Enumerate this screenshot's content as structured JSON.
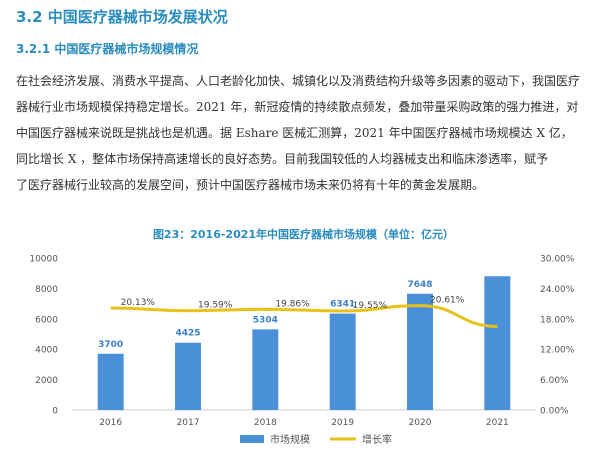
{
  "heading": "3.2 中国医疗器械市场发展状况",
  "subheading": "3.2.1 中国医疗器械市场规模情况",
  "paragraph_lines": [
    "在社会经济发展、消费水平提高、人口老龄化加快、城镇化以及消费结构升级等多因素的驱动下，我国医疗",
    "器械行业市场规模保持稳定增长。2021 年，新冠疫情的持续散点频发，叠加带量采购政策的强力推进，对",
    "中国医疗器械来说既是挑战也是机遇。据 Eshare 医械汇测算，2021 年中国医疗器械市场规模达  X   亿，",
    "同比增长  X   ，整体市场保持高速增长的良好态势。目前我国较低的人均器械支出和临床渗透率，赋予",
    "了医疗器械行业较高的发展空间，预计中国医疗器械市场未来仍将有十年的黄金发展期。"
  ],
  "chart_data": {
    "type": "bar",
    "title": "图23：2016-2021年中国医疗器械市场规模（单位：亿元）",
    "categories": [
      "2016",
      "2017",
      "2018",
      "2019",
      "2020",
      "2021"
    ],
    "series": [
      {
        "name": "市场规模",
        "type": "bar",
        "axis": "left",
        "values": [
          3700,
          4425,
          5304,
          6341,
          7648,
          8800
        ],
        "labels": [
          "3700",
          "4425",
          "5304",
          "6341",
          "7648",
          ""
        ],
        "color": "#4a90d9"
      },
      {
        "name": "增长率",
        "type": "line",
        "axis": "right",
        "values": [
          20.13,
          19.59,
          19.86,
          19.55,
          20.61,
          16.5
        ],
        "labels": [
          "20.13%",
          "19.59%",
          "19.86%",
          "19.55%",
          "20.61%",
          ""
        ],
        "color": "#e8c21a"
      }
    ],
    "ylim_left": [
      0,
      10000
    ],
    "yticks_left": [
      "0",
      "2000",
      "4000",
      "6000",
      "8000",
      "10000"
    ],
    "ylim_right": [
      0,
      30
    ],
    "yticks_right": [
      "0.00%",
      "6.00%",
      "12.00%",
      "18.00%",
      "24.00%",
      "30.00%"
    ],
    "grid": false,
    "legend_position": "bottom"
  }
}
